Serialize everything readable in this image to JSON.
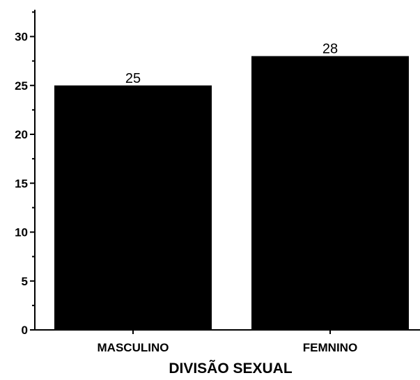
{
  "chart_data": {
    "type": "bar",
    "title": "",
    "xlabel": "DIVISÃO SEXUAL",
    "ylabel": "",
    "categories": [
      "MASCULINO",
      "FEMNINO"
    ],
    "values": [
      25,
      28
    ],
    "data_labels": [
      "25",
      "28"
    ],
    "ylim": [
      0,
      32
    ],
    "yticks": [
      0,
      5,
      10,
      15,
      20,
      25,
      30
    ],
    "ytick_labels": [
      "0",
      "5",
      "10",
      "15",
      "20",
      "25",
      "30"
    ],
    "bar_color": "#000000",
    "grid": false,
    "legend": "none"
  }
}
